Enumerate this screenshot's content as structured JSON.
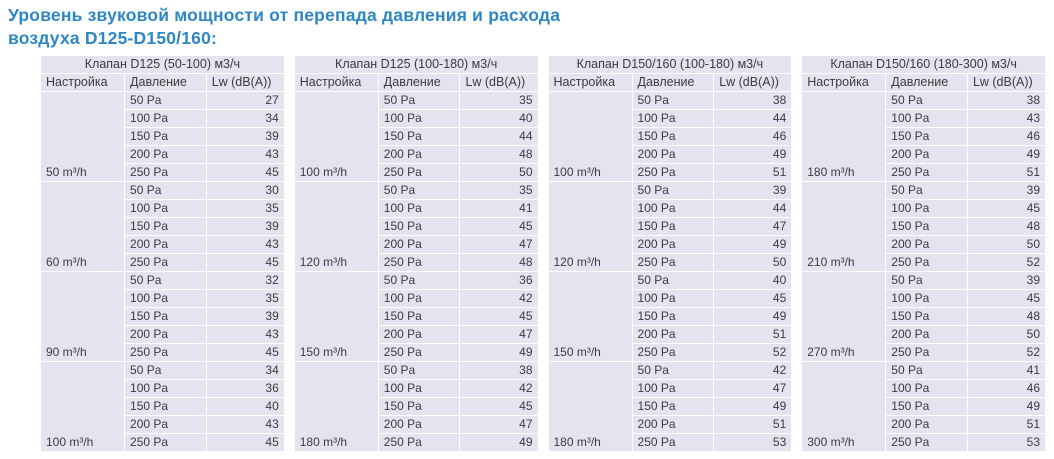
{
  "page": {
    "title": "Уровень звуковой мощности от перепада давления и расхода воздуха D125-D150/160:"
  },
  "colors": {
    "title_blue": "#2d87c3",
    "cell_background": "#e3e4ef",
    "text": "#3c3c3c",
    "separator": "#ffffff"
  },
  "columns": {
    "setting": "Настройка",
    "pressure": "Давление",
    "lw": "Lw (dB(A))"
  },
  "tables": [
    {
      "header": "Клапан D125 (50-100) м3/ч",
      "groups": [
        {
          "setting": "50 m³/h",
          "rows": [
            {
              "pressure": "50 Pa",
              "lw": "27"
            },
            {
              "pressure": "100 Pa",
              "lw": "34"
            },
            {
              "pressure": "150 Pa",
              "lw": "39"
            },
            {
              "pressure": "200 Pa",
              "lw": "43"
            },
            {
              "pressure": "250 Pa",
              "lw": "45"
            }
          ]
        },
        {
          "setting": "60 m³/h",
          "rows": [
            {
              "pressure": "50 Pa",
              "lw": "30"
            },
            {
              "pressure": "100 Pa",
              "lw": "35"
            },
            {
              "pressure": "150 Pa",
              "lw": "39"
            },
            {
              "pressure": "200 Pa",
              "lw": "43"
            },
            {
              "pressure": "250 Pa",
              "lw": "45"
            }
          ]
        },
        {
          "setting": "90 m³/h",
          "rows": [
            {
              "pressure": "50 Pa",
              "lw": "32"
            },
            {
              "pressure": "100 Pa",
              "lw": "35"
            },
            {
              "pressure": "150 Pa",
              "lw": "39"
            },
            {
              "pressure": "200 Pa",
              "lw": "43"
            },
            {
              "pressure": "250 Pa",
              "lw": "45"
            }
          ]
        },
        {
          "setting": "100 m³/h",
          "rows": [
            {
              "pressure": "50 Pa",
              "lw": "34"
            },
            {
              "pressure": "100 Pa",
              "lw": "36"
            },
            {
              "pressure": "150 Pa",
              "lw": "40"
            },
            {
              "pressure": "200 Pa",
              "lw": "43"
            },
            {
              "pressure": "250 Pa",
              "lw": "45"
            }
          ]
        }
      ]
    },
    {
      "header": "Клапан D125 (100-180) м3/ч",
      "groups": [
        {
          "setting": "100 m³/h",
          "rows": [
            {
              "pressure": "50 Pa",
              "lw": "35"
            },
            {
              "pressure": "100 Pa",
              "lw": "40"
            },
            {
              "pressure": "150 Pa",
              "lw": "44"
            },
            {
              "pressure": "200 Pa",
              "lw": "48"
            },
            {
              "pressure": "250 Pa",
              "lw": "50"
            }
          ]
        },
        {
          "setting": "120 m³/h",
          "rows": [
            {
              "pressure": "50 Pa",
              "lw": "35"
            },
            {
              "pressure": "100 Pa",
              "lw": "41"
            },
            {
              "pressure": "150 Pa",
              "lw": "45"
            },
            {
              "pressure": "200 Pa",
              "lw": "47"
            },
            {
              "pressure": "250 Pa",
              "lw": "48"
            }
          ]
        },
        {
          "setting": "150 m³/h",
          "rows": [
            {
              "pressure": "50 Pa",
              "lw": "36"
            },
            {
              "pressure": "100 Pa",
              "lw": "42"
            },
            {
              "pressure": "150 Pa",
              "lw": "45"
            },
            {
              "pressure": "200 Pa",
              "lw": "47"
            },
            {
              "pressure": "250 Pa",
              "lw": "49"
            }
          ]
        },
        {
          "setting": "180 m³/h",
          "rows": [
            {
              "pressure": "50 Pa",
              "lw": "38"
            },
            {
              "pressure": "100 Pa",
              "lw": "42"
            },
            {
              "pressure": "150 Pa",
              "lw": "45"
            },
            {
              "pressure": "200 Pa",
              "lw": "47"
            },
            {
              "pressure": "250 Pa",
              "lw": "49"
            }
          ]
        }
      ]
    },
    {
      "header": "Клапан D150/160 (100-180) м3/ч",
      "groups": [
        {
          "setting": "100 m³/h",
          "rows": [
            {
              "pressure": "50 Pa",
              "lw": "38"
            },
            {
              "pressure": "100 Pa",
              "lw": "44"
            },
            {
              "pressure": "150 Pa",
              "lw": "46"
            },
            {
              "pressure": "200 Pa",
              "lw": "49"
            },
            {
              "pressure": "250 Pa",
              "lw": "51"
            }
          ]
        },
        {
          "setting": "120 m³/h",
          "rows": [
            {
              "pressure": "50 Pa",
              "lw": "39"
            },
            {
              "pressure": "100 Pa",
              "lw": "44"
            },
            {
              "pressure": "150 Pa",
              "lw": "47"
            },
            {
              "pressure": "200 Pa",
              "lw": "49"
            },
            {
              "pressure": "250 Pa",
              "lw": "50"
            }
          ]
        },
        {
          "setting": "150 m³/h",
          "rows": [
            {
              "pressure": "50 Pa",
              "lw": "40"
            },
            {
              "pressure": "100 Pa",
              "lw": "45"
            },
            {
              "pressure": "150 Pa",
              "lw": "49"
            },
            {
              "pressure": "200 Pa",
              "lw": "51"
            },
            {
              "pressure": "250 Pa",
              "lw": "52"
            }
          ]
        },
        {
          "setting": "180 m³/h",
          "rows": [
            {
              "pressure": "50 Pa",
              "lw": "42"
            },
            {
              "pressure": "100 Pa",
              "lw": "47"
            },
            {
              "pressure": "150 Pa",
              "lw": "49"
            },
            {
              "pressure": "200 Pa",
              "lw": "51"
            },
            {
              "pressure": "250 Pa",
              "lw": "53"
            }
          ]
        }
      ]
    },
    {
      "header": "Клапан D150/160 (180-300) м3/ч",
      "groups": [
        {
          "setting": "180 m³/h",
          "rows": [
            {
              "pressure": "50 Pa",
              "lw": "38"
            },
            {
              "pressure": "100 Pa",
              "lw": "43"
            },
            {
              "pressure": "150 Pa",
              "lw": "46"
            },
            {
              "pressure": "200 Pa",
              "lw": "49"
            },
            {
              "pressure": "250 Pa",
              "lw": "51"
            }
          ]
        },
        {
          "setting": "210 m³/h",
          "rows": [
            {
              "pressure": "50 Pa",
              "lw": "39"
            },
            {
              "pressure": "100 Pa",
              "lw": "45"
            },
            {
              "pressure": "150 Pa",
              "lw": "48"
            },
            {
              "pressure": "200 Pa",
              "lw": "50"
            },
            {
              "pressure": "250 Pa",
              "lw": "52"
            }
          ]
        },
        {
          "setting": "270 m³/h",
          "rows": [
            {
              "pressure": "50 Pa",
              "lw": "39"
            },
            {
              "pressure": "100 Pa",
              "lw": "45"
            },
            {
              "pressure": "150 Pa",
              "lw": "48"
            },
            {
              "pressure": "200 Pa",
              "lw": "50"
            },
            {
              "pressure": "250 Pa",
              "lw": "52"
            }
          ]
        },
        {
          "setting": "300 m³/h",
          "rows": [
            {
              "pressure": "50 Pa",
              "lw": "41"
            },
            {
              "pressure": "100 Pa",
              "lw": "46"
            },
            {
              "pressure": "150 Pa",
              "lw": "49"
            },
            {
              "pressure": "200 Pa",
              "lw": "51"
            },
            {
              "pressure": "250 Pa",
              "lw": "53"
            }
          ]
        }
      ]
    }
  ]
}
